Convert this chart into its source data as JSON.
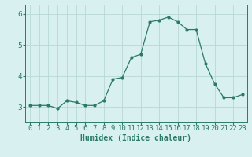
{
  "x": [
    0,
    1,
    2,
    3,
    4,
    5,
    6,
    7,
    8,
    9,
    10,
    11,
    12,
    13,
    14,
    15,
    16,
    17,
    18,
    19,
    20,
    21,
    22,
    23
  ],
  "y": [
    3.05,
    3.05,
    3.05,
    2.95,
    3.2,
    3.15,
    3.05,
    3.05,
    3.2,
    3.9,
    3.95,
    4.6,
    4.7,
    5.75,
    5.8,
    5.9,
    5.75,
    5.5,
    5.5,
    4.4,
    3.75,
    3.3,
    3.3,
    3.4
  ],
  "line_color": "#2a7a6a",
  "marker_color": "#2a7a6a",
  "bg_color": "#d8f0f0",
  "grid_color": "#b8d8d8",
  "xlabel": "Humidex (Indice chaleur)",
  "ylim": [
    2.5,
    6.3
  ],
  "yticks": [
    3,
    4,
    5,
    6
  ],
  "xlim": [
    -0.5,
    23.5
  ],
  "xlabel_fontsize": 7,
  "tick_fontsize": 6.5
}
